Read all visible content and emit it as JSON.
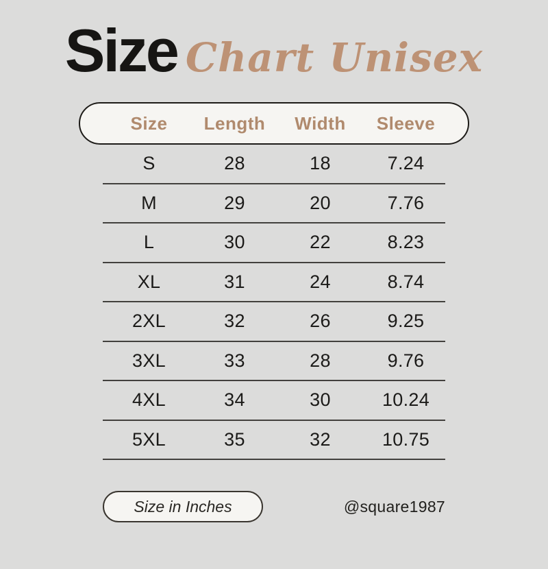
{
  "page": {
    "background_color": "#dcdcdb",
    "accent_tan": "#bd9275",
    "header_text_color": "#b08a6d",
    "text_color": "#1b1a18",
    "pill_background": "#f6f5f2"
  },
  "title": {
    "bold": "Size",
    "script": "Chart Unisex"
  },
  "table": {
    "headers": [
      "Size",
      "Length",
      "Width",
      "Sleeve"
    ],
    "rows": [
      [
        "S",
        "28",
        "18",
        "7.24"
      ],
      [
        "M",
        "29",
        "20",
        "7.76"
      ],
      [
        "L",
        "30",
        "22",
        "8.23"
      ],
      [
        "XL",
        "31",
        "24",
        "8.74"
      ],
      [
        "2XL",
        "32",
        "26",
        "9.25"
      ],
      [
        "3XL",
        "33",
        "28",
        "9.76"
      ],
      [
        "4XL",
        "34",
        "30",
        "10.24"
      ],
      [
        "5XL",
        "35",
        "32",
        "10.75"
      ]
    ]
  },
  "footer": {
    "unit_button": "Size in Inches",
    "credit": "@square1987"
  },
  "chart_data": {
    "type": "table",
    "title": "Size Chart Unisex",
    "unit": "inches",
    "columns": [
      "Size",
      "Length",
      "Width",
      "Sleeve"
    ],
    "rows": [
      [
        "S",
        28,
        18,
        7.24
      ],
      [
        "M",
        29,
        20,
        7.76
      ],
      [
        "L",
        30,
        22,
        8.23
      ],
      [
        "XL",
        31,
        24,
        8.74
      ],
      [
        "2XL",
        32,
        26,
        9.25
      ],
      [
        "3XL",
        33,
        28,
        9.76
      ],
      [
        "4XL",
        34,
        30,
        10.24
      ],
      [
        "5XL",
        35,
        32,
        10.75
      ]
    ]
  }
}
